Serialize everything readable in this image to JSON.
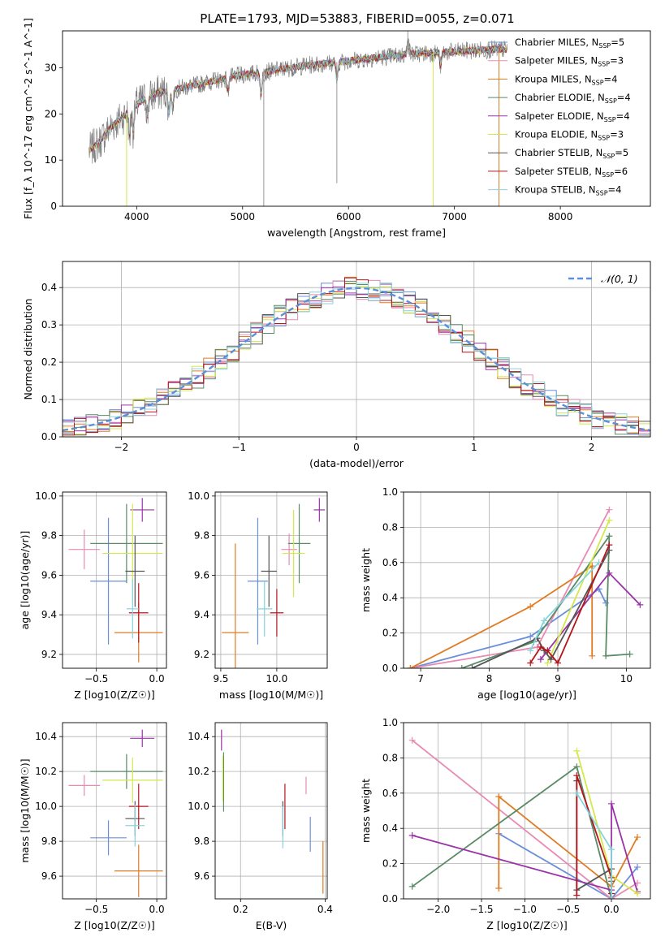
{
  "title": "PLATE=1793, MJD=53883, FIBERID=0055, z=0.071",
  "colors": {
    "Chabrier MILES": "#6a8fd9",
    "Salpeter MILES": "#e88ab4",
    "Kroupa MILES": "#e07b22",
    "Chabrier ELODIE": "#5b8a66",
    "Salpeter ELODIE": "#9a33a8",
    "Kroupa ELODIE": "#d4e84a",
    "Chabrier STELIB": "#555555",
    "Salpeter STELIB": "#b5161c",
    "Kroupa STELIB": "#86d4dc",
    "normal": "#5b8fd9"
  },
  "chart_data": [
    {
      "id": "spectrum",
      "type": "line",
      "xlabel": "wavelength [Angstrom, rest frame]",
      "ylabel": "Flux [f_λ 10^-17 erg cm^-2 s^-1 A^-1]",
      "xlim": [
        3300,
        8850
      ],
      "ylim": [
        0,
        38
      ],
      "xticks": [
        4000,
        5000,
        6000,
        7000,
        8000
      ],
      "yticks": [
        0,
        10,
        20,
        30
      ],
      "grid": false,
      "legend_position": "right",
      "legend": [
        {
          "model": "Chabrier MILES",
          "label": "Chabrier MILES, N",
          "sub": "SSP",
          "value": "=5"
        },
        {
          "model": "Salpeter MILES",
          "label": "Salpeter MILES, N",
          "sub": "SSP",
          "value": "=3"
        },
        {
          "model": "Kroupa MILES",
          "label": "Kroupa MILES, N",
          "sub": "SSP",
          "value": "=4"
        },
        {
          "model": "Chabrier ELODIE",
          "label": "Chabrier ELODIE, N",
          "sub": "SSP",
          "value": "=4"
        },
        {
          "model": "Salpeter ELODIE",
          "label": "Salpeter ELODIE, N",
          "sub": "SSP",
          "value": "=4"
        },
        {
          "model": "Kroupa ELODIE",
          "label": "Kroupa ELODIE, N",
          "sub": "SSP",
          "value": "=3"
        },
        {
          "model": "Chabrier STELIB",
          "label": "Chabrier STELIB, N",
          "sub": "SSP",
          "value": "=5"
        },
        {
          "model": "Salpeter STELIB",
          "label": "Salpeter STELIB, N",
          "sub": "SSP",
          "value": "=6"
        },
        {
          "model": "Kroupa STELIB",
          "label": "Kroupa STELIB, N",
          "sub": "SSP",
          "value": "=4"
        }
      ],
      "continuum": [
        [
          3550,
          12
        ],
        [
          3650,
          14
        ],
        [
          3750,
          17
        ],
        [
          3850,
          19
        ],
        [
          3950,
          21
        ],
        [
          4050,
          23
        ],
        [
          4200,
          24.5
        ],
        [
          4400,
          25.5
        ],
        [
          4600,
          26.5
        ],
        [
          4800,
          27.5
        ],
        [
          5000,
          28.5
        ],
        [
          5200,
          29
        ],
        [
          5400,
          29.8
        ],
        [
          5600,
          30.5
        ],
        [
          5800,
          31
        ],
        [
          6000,
          31.5
        ],
        [
          6200,
          32
        ],
        [
          6400,
          32.5
        ],
        [
          6600,
          33
        ],
        [
          6800,
          33.2
        ],
        [
          7000,
          33.5
        ],
        [
          7200,
          33.8
        ],
        [
          7400,
          34
        ],
        [
          7500,
          34
        ]
      ],
      "absorption_features": [
        [
          3933,
          6
        ],
        [
          3968,
          5
        ],
        [
          4102,
          4
        ],
        [
          4304,
          5
        ],
        [
          4340,
          4
        ],
        [
          4861,
          3
        ],
        [
          5175,
          5
        ],
        [
          5890,
          4
        ],
        [
          6563,
          -3
        ],
        [
          6870,
          3
        ],
        [
          7600,
          3
        ]
      ],
      "spikes": [
        [
          3905,
          0
        ],
        [
          5200,
          0
        ],
        [
          5890,
          5
        ],
        [
          6560,
          38
        ],
        [
          6800,
          0
        ],
        [
          7420,
          0
        ]
      ]
    },
    {
      "id": "residual-histogram",
      "type": "histogram",
      "xlabel": "(data-model)/error",
      "ylabel": "Normed distribution",
      "xlim": [
        -2.5,
        2.5
      ],
      "ylim": [
        0,
        0.47
      ],
      "xticks": [
        -2,
        -1,
        0,
        1,
        2
      ],
      "yticks": [
        0.0,
        0.1,
        0.2,
        0.3,
        0.4
      ],
      "grid": true,
      "legend_position": "upper right",
      "legend_label": "𝒩(0, 1)",
      "bin_width": 0.1,
      "normal_mu": 0,
      "normal_sigma": 1
    },
    {
      "id": "age-vs-Z",
      "type": "scatter",
      "xlabel": "Z [log10(Z/Z☉)]",
      "ylabel": "age [log10(age/yr)]",
      "xlim": [
        -0.78,
        0.08
      ],
      "ylim": [
        9.13,
        10.02
      ],
      "xticks": [
        -0.5,
        0.0
      ],
      "yticks": [
        9.2,
        9.4,
        9.6,
        9.8,
        10.0
      ],
      "grid": true,
      "points": [
        {
          "model": "Chabrier MILES",
          "x": -0.4,
          "y": 9.57,
          "xerr": 0.15,
          "yerr": 0.32
        },
        {
          "model": "Salpeter MILES",
          "x": -0.6,
          "y": 9.73,
          "xerr": 0.13,
          "yerr": 0.1
        },
        {
          "model": "Kroupa MILES",
          "x": -0.15,
          "y": 9.31,
          "xerr": 0.2,
          "yerr": 0.15
        },
        {
          "model": "Chabrier ELODIE",
          "x": -0.25,
          "y": 9.76,
          "xerr": 0.3,
          "yerr": 0.2
        },
        {
          "model": "Salpeter ELODIE",
          "x": -0.12,
          "y": 9.93,
          "xerr": 0.1,
          "yerr": 0.06
        },
        {
          "model": "Kroupa ELODIE",
          "x": -0.2,
          "y": 9.71,
          "xerr": 0.25,
          "yerr": 0.25
        },
        {
          "model": "Chabrier STELIB",
          "x": -0.18,
          "y": 9.62,
          "xerr": 0.08,
          "yerr": 0.18
        },
        {
          "model": "Salpeter STELIB",
          "x": -0.15,
          "y": 9.41,
          "xerr": 0.08,
          "yerr": 0.15
        },
        {
          "model": "Kroupa STELIB",
          "x": -0.2,
          "y": 9.43,
          "xerr": 0.05,
          "yerr": 0.15
        }
      ]
    },
    {
      "id": "age-vs-mass",
      "type": "scatter",
      "xlabel": "mass [log10(M/M☉)]",
      "ylabel": "",
      "xlim": [
        9.45,
        10.45
      ],
      "ylim": [
        9.13,
        10.02
      ],
      "xticks": [
        9.5,
        10.0
      ],
      "yticks": [
        9.2,
        9.4,
        9.6,
        9.8,
        10.0
      ],
      "grid": true,
      "points": [
        {
          "model": "Chabrier MILES",
          "x": 9.83,
          "y": 9.57,
          "xerr": 0.09,
          "yerr": 0.32
        },
        {
          "model": "Salpeter MILES",
          "x": 10.11,
          "y": 9.73,
          "xerr": 0.07,
          "yerr": 0.08
        },
        {
          "model": "Kroupa MILES",
          "x": 9.63,
          "y": 9.31,
          "xerr": 0.12,
          "yerr": 0.45
        },
        {
          "model": "Chabrier ELODIE",
          "x": 10.2,
          "y": 9.76,
          "xerr": 0.1,
          "yerr": 0.2
        },
        {
          "model": "Salpeter ELODIE",
          "x": 10.38,
          "y": 9.93,
          "xerr": 0.05,
          "yerr": 0.06
        },
        {
          "model": "Kroupa ELODIE",
          "x": 10.15,
          "y": 9.71,
          "xerr": 0.1,
          "yerr": 0.22
        },
        {
          "model": "Chabrier STELIB",
          "x": 9.93,
          "y": 9.62,
          "xerr": 0.07,
          "yerr": 0.18
        },
        {
          "model": "Salpeter STELIB",
          "x": 10.0,
          "y": 9.41,
          "xerr": 0.06,
          "yerr": 0.12
        },
        {
          "model": "Kroupa STELIB",
          "x": 9.89,
          "y": 9.43,
          "xerr": 0.07,
          "yerr": 0.14
        }
      ]
    },
    {
      "id": "weight-vs-age",
      "type": "line",
      "xlabel": "age [log10(age/yr)]",
      "ylabel": "mass weight",
      "xlim": [
        6.75,
        10.35
      ],
      "ylim": [
        0,
        1.0
      ],
      "xticks": [
        7,
        8,
        9,
        10
      ],
      "yticks": [
        0.0,
        0.2,
        0.4,
        0.6,
        0.8,
        1.0
      ],
      "grid": true,
      "series": [
        {
          "model": "Chabrier MILES",
          "points": [
            [
              6.85,
              0.0
            ],
            [
              8.6,
              0.18
            ],
            [
              9.6,
              0.45
            ],
            [
              9.7,
              0.37
            ]
          ]
        },
        {
          "model": "Salpeter MILES",
          "points": [
            [
              6.85,
              0.0
            ],
            [
              8.7,
              0.12
            ],
            [
              9.75,
              0.9
            ]
          ]
        },
        {
          "model": "Kroupa MILES",
          "points": [
            [
              6.85,
              0.0
            ],
            [
              8.6,
              0.35
            ],
            [
              9.5,
              0.58
            ],
            [
              9.5,
              0.07
            ]
          ]
        },
        {
          "model": "Chabrier ELODIE",
          "points": [
            [
              7.6,
              0.0
            ],
            [
              8.65,
              0.15
            ],
            [
              9.75,
              0.75
            ],
            [
              9.7,
              0.07
            ],
            [
              10.05,
              0.08
            ]
          ]
        },
        {
          "model": "Salpeter ELODIE",
          "points": [
            [
              8.75,
              0.05
            ],
            [
              9.75,
              0.54
            ],
            [
              10.2,
              0.36
            ]
          ]
        },
        {
          "model": "Kroupa ELODIE",
          "points": [
            [
              8.85,
              0.03
            ],
            [
              9.75,
              0.84
            ]
          ]
        },
        {
          "model": "Chabrier STELIB",
          "points": [
            [
              7.75,
              0.0
            ],
            [
              8.7,
              0.17
            ],
            [
              8.8,
              0.1
            ],
            [
              8.9,
              0.05
            ],
            [
              9.75,
              0.67
            ]
          ]
        },
        {
          "model": "Salpeter STELIB",
          "points": [
            [
              8.6,
              0.03
            ],
            [
              8.75,
              0.12
            ],
            [
              8.85,
              0.1
            ],
            [
              9.0,
              0.03
            ],
            [
              9.75,
              0.7
            ]
          ]
        },
        {
          "model": "Kroupa STELIB",
          "points": [
            [
              8.6,
              0.1
            ],
            [
              8.8,
              0.27
            ],
            [
              9.6,
              0.6
            ]
          ]
        }
      ]
    },
    {
      "id": "mass-vs-Z",
      "type": "scatter",
      "xlabel": "Z [log10(Z/Z☉)]",
      "ylabel": "mass [log10(M/M☉)]",
      "xlim": [
        -0.78,
        0.08
      ],
      "ylim": [
        9.47,
        10.48
      ],
      "xticks": [
        -0.5,
        0.0
      ],
      "yticks": [
        9.6,
        9.8,
        10.0,
        10.2,
        10.4
      ],
      "grid": true,
      "points": [
        {
          "model": "Chabrier MILES",
          "x": -0.4,
          "y": 9.82,
          "xerr": 0.15,
          "yerr": 0.1
        },
        {
          "model": "Salpeter MILES",
          "x": -0.6,
          "y": 10.12,
          "xerr": 0.13,
          "yerr": 0.06
        },
        {
          "model": "Kroupa MILES",
          "x": -0.15,
          "y": 9.63,
          "xerr": 0.2,
          "yerr": 0.15
        },
        {
          "model": "Chabrier ELODIE",
          "x": -0.25,
          "y": 10.2,
          "xerr": 0.3,
          "yerr": 0.1
        },
        {
          "model": "Salpeter ELODIE",
          "x": -0.12,
          "y": 10.39,
          "xerr": 0.1,
          "yerr": 0.05
        },
        {
          "model": "Kroupa ELODIE",
          "x": -0.2,
          "y": 10.15,
          "xerr": 0.25,
          "yerr": 0.13
        },
        {
          "model": "Chabrier STELIB",
          "x": -0.18,
          "y": 9.93,
          "xerr": 0.08,
          "yerr": 0.1
        },
        {
          "model": "Salpeter STELIB",
          "x": -0.15,
          "y": 10.0,
          "xerr": 0.08,
          "yerr": 0.13
        },
        {
          "model": "Kroupa STELIB",
          "x": -0.18,
          "y": 9.89,
          "xerr": 0.08,
          "yerr": 0.12
        }
      ]
    },
    {
      "id": "mass-vs-EBV",
      "type": "scatter",
      "xlabel": "E(B-V)",
      "ylabel": "",
      "xlim": [
        0.14,
        0.405
      ],
      "ylim": [
        9.47,
        10.48
      ],
      "xticks": [
        0.2,
        0.4
      ],
      "yticks": [
        9.6,
        9.8,
        10.0,
        10.2,
        10.4
      ],
      "grid": true,
      "points": [
        {
          "model": "Chabrier MILES",
          "x": 0.365,
          "y": 9.84,
          "xerr": 0,
          "yerr": 0.1
        },
        {
          "model": "Salpeter MILES",
          "x": 0.355,
          "y": 10.12,
          "xerr": 0,
          "yerr": 0.05
        },
        {
          "model": "Kroupa MILES",
          "x": 0.395,
          "y": 9.65,
          "xerr": 0,
          "yerr": 0.15
        },
        {
          "model": "Chabrier ELODIE",
          "x": 0.16,
          "y": 10.14,
          "xerr": 0,
          "yerr": 0.17
        },
        {
          "model": "Salpeter ELODIE",
          "x": 0.155,
          "y": 10.38,
          "xerr": 0,
          "yerr": 0.06
        },
        {
          "model": "Kroupa ELODIE",
          "x": 0.158,
          "y": 10.16,
          "xerr": 0,
          "yerr": 0.13
        },
        {
          "model": "Chabrier STELIB",
          "x": 0.3,
          "y": 9.93,
          "xerr": 0,
          "yerr": 0.1
        },
        {
          "model": "Salpeter STELIB",
          "x": 0.305,
          "y": 10.0,
          "xerr": 0,
          "yerr": 0.13
        },
        {
          "model": "Kroupa STELIB",
          "x": 0.3,
          "y": 9.88,
          "xerr": 0,
          "yerr": 0.12
        }
      ]
    },
    {
      "id": "weight-vs-Z",
      "type": "line",
      "xlabel": "Z [log10(Z/Z☉)]",
      "ylabel": "mass weight",
      "xlim": [
        -2.4,
        0.45
      ],
      "ylim": [
        0,
        1.0
      ],
      "xticks": [
        -2.0,
        -1.5,
        -1.0,
        -0.5,
        0.0
      ],
      "yticks": [
        0.0,
        0.2,
        0.4,
        0.6,
        0.8,
        1.0
      ],
      "grid": true,
      "series": [
        {
          "model": "Chabrier MILES",
          "points": [
            [
              -1.3,
              0.37
            ],
            [
              0.0,
              0.0
            ],
            [
              0.3,
              0.18
            ]
          ]
        },
        {
          "model": "Salpeter MILES",
          "points": [
            [
              -2.3,
              0.9
            ],
            [
              0.0,
              0.0
            ],
            [
              0.3,
              0.09
            ]
          ]
        },
        {
          "model": "Kroupa MILES",
          "points": [
            [
              -1.3,
              0.06
            ],
            [
              -1.3,
              0.58
            ],
            [
              0.0,
              0.07
            ],
            [
              0.3,
              0.35
            ]
          ]
        },
        {
          "model": "Chabrier ELODIE",
          "points": [
            [
              -2.3,
              0.07
            ],
            [
              -0.4,
              0.75
            ],
            [
              0.0,
              0.0
            ]
          ]
        },
        {
          "model": "Salpeter ELODIE",
          "points": [
            [
              -2.3,
              0.36
            ],
            [
              0.0,
              0.05
            ],
            [
              0.0,
              0.54
            ],
            [
              0.3,
              0.04
            ]
          ]
        },
        {
          "model": "Kroupa ELODIE",
          "points": [
            [
              -0.4,
              0.84
            ],
            [
              0.0,
              0.13
            ],
            [
              0.3,
              0.03
            ]
          ]
        },
        {
          "model": "Chabrier STELIB",
          "points": [
            [
              -0.4,
              0.67
            ],
            [
              -0.4,
              0.05
            ],
            [
              0.0,
              0.17
            ],
            [
              0.0,
              0.1
            ]
          ]
        },
        {
          "model": "Salpeter STELIB",
          "points": [
            [
              -0.4,
              0.02
            ],
            [
              -0.4,
              0.7
            ],
            [
              0.0,
              0.12
            ],
            [
              0.0,
              0.03
            ]
          ]
        },
        {
          "model": "Kroupa STELIB",
          "points": [
            [
              -0.4,
              0.6
            ],
            [
              0.0,
              0.28
            ],
            [
              0.0,
              0.0
            ]
          ]
        }
      ]
    }
  ]
}
